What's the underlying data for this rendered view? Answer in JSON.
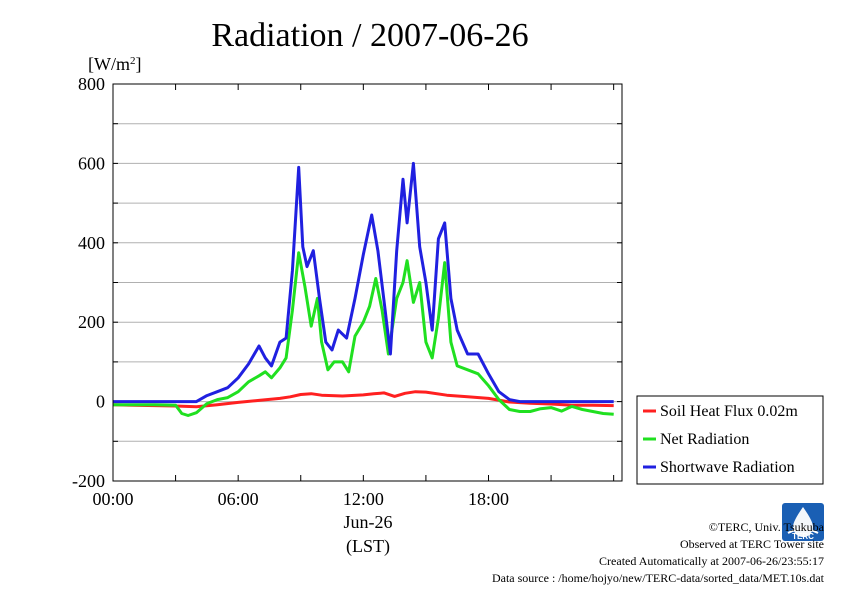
{
  "chart_data": {
    "type": "line",
    "title": "Radiation / 2007-06-26",
    "ylabel": "[W/m2]",
    "ylabel_base": "[W/m",
    "ylabel_sup": "2",
    "ylabel_end": "]",
    "ylim": [
      -200,
      800
    ],
    "yticks": [
      "-200",
      "0",
      "200",
      "400",
      "600",
      "800"
    ],
    "xlim": [
      0,
      24.4
    ],
    "xticks": [
      {
        "value": 0,
        "label": "00:00"
      },
      {
        "value": 6,
        "label": "06:00"
      },
      {
        "value": 12,
        "label": "12:00"
      },
      {
        "value": 18,
        "label": "18:00"
      }
    ],
    "xdate": "Jun-26",
    "xunit": "(LST)",
    "grid": true,
    "legend_position": "right",
    "series": [
      {
        "name": "Soil Heat Flux 0.02m",
        "color": "#ff2020",
        "x": [
          0,
          1,
          2,
          3,
          3.5,
          4,
          5,
          6,
          7,
          8,
          8.5,
          9,
          9.5,
          10,
          11,
          12,
          12.5,
          13,
          13.5,
          14,
          14.5,
          15,
          16,
          17,
          18,
          19,
          20,
          21,
          22,
          23,
          24
        ],
        "y": [
          -8,
          -9,
          -10,
          -11,
          -12,
          -13,
          -8,
          -2,
          3,
          8,
          12,
          18,
          20,
          16,
          14,
          17,
          20,
          22,
          13,
          21,
          25,
          24,
          16,
          12,
          8,
          -1,
          -4,
          -6,
          -9,
          -9,
          -10
        ]
      },
      {
        "name": "Net Radiation",
        "color": "#20e020",
        "x": [
          0,
          1,
          2,
          3,
          3.3,
          3.6,
          4,
          4.5,
          5,
          5.5,
          6,
          6.5,
          7,
          7.3,
          7.6,
          8,
          8.3,
          8.6,
          8.9,
          9.2,
          9.5,
          9.8,
          10,
          10.3,
          10.6,
          11,
          11.3,
          11.6,
          12,
          12.3,
          12.6,
          12.9,
          13.2,
          13.6,
          13.9,
          14.1,
          14.4,
          14.7,
          15,
          15.3,
          15.6,
          15.9,
          16.2,
          16.5,
          17,
          17.5,
          18,
          18.5,
          19,
          19.5,
          20,
          20.5,
          21,
          21.5,
          22,
          22.5,
          23,
          23.5,
          24
        ],
        "y": [
          -8,
          -8,
          -8,
          -9,
          -30,
          -35,
          -28,
          -5,
          5,
          10,
          25,
          50,
          65,
          75,
          60,
          85,
          110,
          230,
          375,
          290,
          190,
          260,
          150,
          80,
          100,
          100,
          75,
          165,
          200,
          240,
          310,
          230,
          120,
          260,
          300,
          355,
          250,
          300,
          150,
          110,
          210,
          350,
          150,
          90,
          80,
          70,
          40,
          5,
          -20,
          -25,
          -25,
          -18,
          -15,
          -24,
          -12,
          -20,
          -25,
          -30,
          -32
        ]
      },
      {
        "name": "Shortwave Radiation",
        "color": "#2020e0",
        "x": [
          0,
          1,
          2,
          3,
          3.5,
          4,
          4.5,
          5,
          5.5,
          6,
          6.5,
          7,
          7.3,
          7.6,
          8,
          8.3,
          8.6,
          8.9,
          9.1,
          9.3,
          9.6,
          9.9,
          10.2,
          10.5,
          10.8,
          11.2,
          11.6,
          12,
          12.4,
          12.7,
          13,
          13.3,
          13.6,
          13.9,
          14.1,
          14.4,
          14.7,
          15,
          15.3,
          15.6,
          15.9,
          16.2,
          16.5,
          17,
          17.5,
          18,
          18.5,
          19,
          19.5,
          20,
          21,
          22,
          23,
          24
        ],
        "y": [
          0,
          0,
          0,
          0,
          0,
          0,
          15,
          25,
          35,
          60,
          95,
          140,
          110,
          90,
          150,
          160,
          330,
          590,
          390,
          340,
          380,
          260,
          150,
          130,
          180,
          160,
          260,
          370,
          470,
          380,
          250,
          120,
          380,
          560,
          450,
          600,
          390,
          300,
          180,
          410,
          450,
          260,
          180,
          120,
          120,
          70,
          25,
          5,
          0,
          0,
          0,
          0,
          0,
          0
        ]
      }
    ]
  },
  "credits": {
    "copyright": "©TERC, Univ. Tsukuba",
    "observed": "Observed at TERC Tower site",
    "created": "Created Automatically at 2007-06-26/23:55:17",
    "source": "Data source : /home/hojyo/new/TERC-data/sorted_data/MET.10s.dat",
    "logo_text": "TERC",
    "logo_color": "#1a5fb4"
  }
}
